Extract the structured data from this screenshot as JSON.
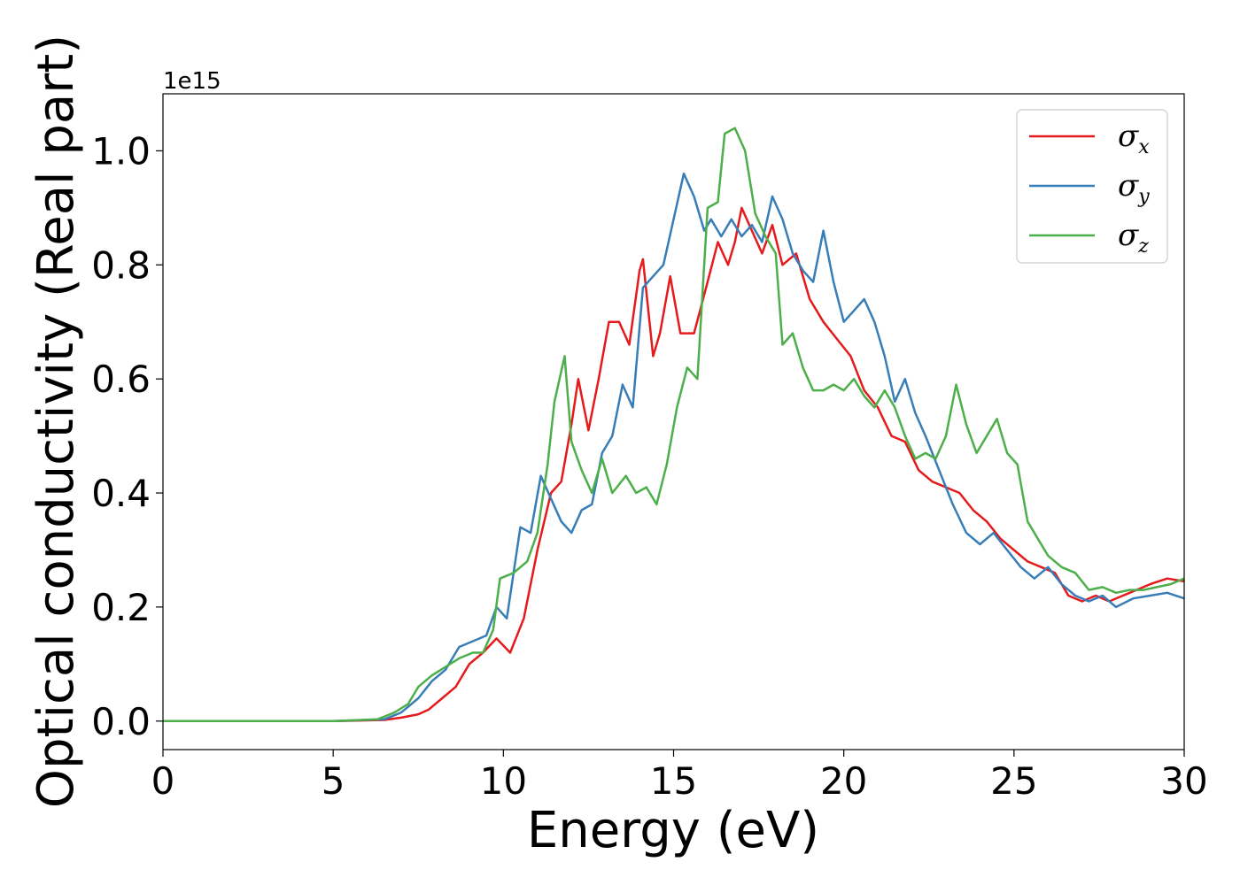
{
  "chart_data": {
    "type": "line",
    "xlabel": "Energy (eV)",
    "ylabel": "Optical conductivity (Real part)",
    "y_offset_label": "1e15",
    "xlim": [
      0,
      30
    ],
    "ylim": [
      -0.05,
      1.1
    ],
    "x_ticks": [
      0,
      5,
      10,
      15,
      20,
      25,
      30
    ],
    "x_tick_labels": [
      "0",
      "5",
      "10",
      "15",
      "20",
      "25",
      "30"
    ],
    "y_ticks": [
      0.0,
      0.2,
      0.4,
      0.6,
      0.8,
      1.0
    ],
    "y_tick_labels": [
      "0.0",
      "0.2",
      "0.4",
      "0.6",
      "0.8",
      "1.0"
    ],
    "grid": false,
    "legend_position": "top-right",
    "series": [
      {
        "name": "σ_x",
        "symbol": "σ",
        "subscript": "x",
        "color": "#e41a1c",
        "points": [
          [
            0,
            0.0
          ],
          [
            5,
            0.0
          ],
          [
            6.5,
            0.002
          ],
          [
            7.0,
            0.006
          ],
          [
            7.5,
            0.012
          ],
          [
            7.8,
            0.02
          ],
          [
            8.2,
            0.04
          ],
          [
            8.6,
            0.06
          ],
          [
            9.0,
            0.1
          ],
          [
            9.4,
            0.12
          ],
          [
            9.8,
            0.145
          ],
          [
            10.2,
            0.12
          ],
          [
            10.6,
            0.18
          ],
          [
            11.0,
            0.3
          ],
          [
            11.4,
            0.4
          ],
          [
            11.7,
            0.42
          ],
          [
            12.0,
            0.52
          ],
          [
            12.2,
            0.6
          ],
          [
            12.5,
            0.51
          ],
          [
            12.8,
            0.6
          ],
          [
            13.1,
            0.7
          ],
          [
            13.4,
            0.7
          ],
          [
            13.7,
            0.66
          ],
          [
            14.0,
            0.79
          ],
          [
            14.1,
            0.81
          ],
          [
            14.4,
            0.64
          ],
          [
            14.6,
            0.68
          ],
          [
            14.9,
            0.78
          ],
          [
            15.2,
            0.68
          ],
          [
            15.6,
            0.68
          ],
          [
            16.0,
            0.77
          ],
          [
            16.3,
            0.84
          ],
          [
            16.6,
            0.8
          ],
          [
            16.8,
            0.84
          ],
          [
            17.0,
            0.9
          ],
          [
            17.3,
            0.86
          ],
          [
            17.6,
            0.82
          ],
          [
            17.9,
            0.87
          ],
          [
            18.2,
            0.8
          ],
          [
            18.6,
            0.82
          ],
          [
            19.0,
            0.74
          ],
          [
            19.4,
            0.7
          ],
          [
            19.8,
            0.67
          ],
          [
            20.2,
            0.64
          ],
          [
            20.6,
            0.58
          ],
          [
            21.0,
            0.55
          ],
          [
            21.4,
            0.5
          ],
          [
            21.8,
            0.49
          ],
          [
            22.2,
            0.44
          ],
          [
            22.6,
            0.42
          ],
          [
            23.0,
            0.41
          ],
          [
            23.4,
            0.4
          ],
          [
            23.8,
            0.37
          ],
          [
            24.2,
            0.35
          ],
          [
            24.6,
            0.32
          ],
          [
            25.0,
            0.3
          ],
          [
            25.4,
            0.28
          ],
          [
            25.8,
            0.27
          ],
          [
            26.2,
            0.26
          ],
          [
            26.6,
            0.22
          ],
          [
            27.0,
            0.21
          ],
          [
            27.4,
            0.22
          ],
          [
            27.8,
            0.21
          ],
          [
            28.2,
            0.22
          ],
          [
            28.6,
            0.23
          ],
          [
            29.0,
            0.24
          ],
          [
            29.5,
            0.25
          ],
          [
            30.0,
            0.245
          ]
        ]
      },
      {
        "name": "σ_y",
        "symbol": "σ",
        "subscript": "y",
        "color": "#377eb8",
        "points": [
          [
            0,
            0.0
          ],
          [
            5,
            0.0
          ],
          [
            6.5,
            0.003
          ],
          [
            7.0,
            0.015
          ],
          [
            7.5,
            0.04
          ],
          [
            7.9,
            0.07
          ],
          [
            8.3,
            0.09
          ],
          [
            8.7,
            0.13
          ],
          [
            9.1,
            0.14
          ],
          [
            9.5,
            0.15
          ],
          [
            9.8,
            0.2
          ],
          [
            10.1,
            0.18
          ],
          [
            10.5,
            0.34
          ],
          [
            10.8,
            0.33
          ],
          [
            11.1,
            0.43
          ],
          [
            11.4,
            0.39
          ],
          [
            11.7,
            0.35
          ],
          [
            12.0,
            0.33
          ],
          [
            12.3,
            0.37
          ],
          [
            12.6,
            0.38
          ],
          [
            12.9,
            0.47
          ],
          [
            13.2,
            0.5
          ],
          [
            13.5,
            0.59
          ],
          [
            13.8,
            0.55
          ],
          [
            14.1,
            0.76
          ],
          [
            14.4,
            0.78
          ],
          [
            14.7,
            0.8
          ],
          [
            15.0,
            0.88
          ],
          [
            15.3,
            0.96
          ],
          [
            15.6,
            0.92
          ],
          [
            15.9,
            0.86
          ],
          [
            16.1,
            0.88
          ],
          [
            16.4,
            0.85
          ],
          [
            16.7,
            0.88
          ],
          [
            17.0,
            0.85
          ],
          [
            17.3,
            0.87
          ],
          [
            17.6,
            0.84
          ],
          [
            17.9,
            0.92
          ],
          [
            18.2,
            0.88
          ],
          [
            18.5,
            0.82
          ],
          [
            18.8,
            0.79
          ],
          [
            19.1,
            0.77
          ],
          [
            19.4,
            0.86
          ],
          [
            19.7,
            0.77
          ],
          [
            20.0,
            0.7
          ],
          [
            20.3,
            0.72
          ],
          [
            20.6,
            0.74
          ],
          [
            20.9,
            0.7
          ],
          [
            21.2,
            0.64
          ],
          [
            21.5,
            0.56
          ],
          [
            21.8,
            0.6
          ],
          [
            22.1,
            0.54
          ],
          [
            22.4,
            0.5
          ],
          [
            22.8,
            0.44
          ],
          [
            23.2,
            0.38
          ],
          [
            23.6,
            0.33
          ],
          [
            24.0,
            0.31
          ],
          [
            24.4,
            0.33
          ],
          [
            24.8,
            0.3
          ],
          [
            25.2,
            0.27
          ],
          [
            25.6,
            0.25
          ],
          [
            26.0,
            0.27
          ],
          [
            26.4,
            0.24
          ],
          [
            26.8,
            0.22
          ],
          [
            27.2,
            0.21
          ],
          [
            27.6,
            0.22
          ],
          [
            28.0,
            0.2
          ],
          [
            28.5,
            0.215
          ],
          [
            29.0,
            0.22
          ],
          [
            29.5,
            0.225
          ],
          [
            30.0,
            0.215
          ]
        ]
      },
      {
        "name": "σ_z",
        "symbol": "σ",
        "subscript": "z",
        "color": "#4daf4a",
        "points": [
          [
            0,
            0.0
          ],
          [
            5,
            0.0
          ],
          [
            6.3,
            0.003
          ],
          [
            6.8,
            0.015
          ],
          [
            7.2,
            0.03
          ],
          [
            7.5,
            0.06
          ],
          [
            7.9,
            0.08
          ],
          [
            8.3,
            0.095
          ],
          [
            8.7,
            0.11
          ],
          [
            9.1,
            0.12
          ],
          [
            9.4,
            0.12
          ],
          [
            9.7,
            0.16
          ],
          [
            9.9,
            0.25
          ],
          [
            10.3,
            0.26
          ],
          [
            10.7,
            0.28
          ],
          [
            11.0,
            0.33
          ],
          [
            11.3,
            0.45
          ],
          [
            11.5,
            0.56
          ],
          [
            11.8,
            0.64
          ],
          [
            12.0,
            0.49
          ],
          [
            12.3,
            0.44
          ],
          [
            12.6,
            0.4
          ],
          [
            12.9,
            0.46
          ],
          [
            13.2,
            0.4
          ],
          [
            13.6,
            0.43
          ],
          [
            13.9,
            0.4
          ],
          [
            14.2,
            0.41
          ],
          [
            14.5,
            0.38
          ],
          [
            14.8,
            0.45
          ],
          [
            15.1,
            0.55
          ],
          [
            15.4,
            0.62
          ],
          [
            15.7,
            0.6
          ],
          [
            16.0,
            0.9
          ],
          [
            16.3,
            0.91
          ],
          [
            16.5,
            1.03
          ],
          [
            16.8,
            1.04
          ],
          [
            17.1,
            1.0
          ],
          [
            17.4,
            0.89
          ],
          [
            17.7,
            0.85
          ],
          [
            18.0,
            0.82
          ],
          [
            18.2,
            0.66
          ],
          [
            18.5,
            0.68
          ],
          [
            18.8,
            0.62
          ],
          [
            19.1,
            0.58
          ],
          [
            19.4,
            0.58
          ],
          [
            19.7,
            0.59
          ],
          [
            20.0,
            0.58
          ],
          [
            20.3,
            0.6
          ],
          [
            20.6,
            0.57
          ],
          [
            20.9,
            0.55
          ],
          [
            21.2,
            0.58
          ],
          [
            21.5,
            0.55
          ],
          [
            21.8,
            0.5
          ],
          [
            22.1,
            0.46
          ],
          [
            22.4,
            0.47
          ],
          [
            22.7,
            0.46
          ],
          [
            23.0,
            0.5
          ],
          [
            23.3,
            0.59
          ],
          [
            23.6,
            0.52
          ],
          [
            23.9,
            0.47
          ],
          [
            24.2,
            0.5
          ],
          [
            24.5,
            0.53
          ],
          [
            24.8,
            0.47
          ],
          [
            25.1,
            0.45
          ],
          [
            25.4,
            0.35
          ],
          [
            25.7,
            0.32
          ],
          [
            26.0,
            0.29
          ],
          [
            26.4,
            0.27
          ],
          [
            26.8,
            0.26
          ],
          [
            27.2,
            0.23
          ],
          [
            27.6,
            0.235
          ],
          [
            28.0,
            0.225
          ],
          [
            28.4,
            0.23
          ],
          [
            28.8,
            0.23
          ],
          [
            29.2,
            0.235
          ],
          [
            29.6,
            0.24
          ],
          [
            30.0,
            0.25
          ]
        ]
      }
    ]
  }
}
